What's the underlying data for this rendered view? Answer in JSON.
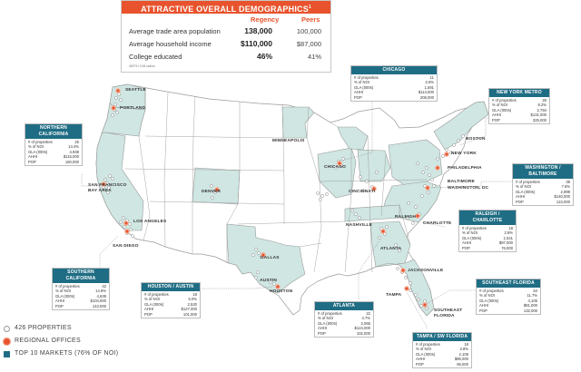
{
  "demographics": {
    "title": "ATTRACTIVE OVERALL DEMOGRAPHICS",
    "title_mark": "1",
    "col_regency": "Regency",
    "col_peers": "Peers",
    "rows": [
      {
        "label": "Average trade area population",
        "regency": "138,000",
        "peers": "100,000"
      },
      {
        "label": "Average household income",
        "regency": "$110,000",
        "peers": "$87,000"
      },
      {
        "label": "College educated",
        "regency": "46%",
        "peers": "41%"
      }
    ],
    "footnote": "¹BRTH 3 Mi radius"
  },
  "markets": [
    {
      "id": "northern-california",
      "title": "NORTHERN CALIFORNIA",
      "rows": [
        [
          "# of properties",
          "25"
        ],
        [
          "% of NOI",
          "14.4%"
        ],
        [
          "GLA (000s)",
          "4,938"
        ],
        [
          "AHHI",
          "$115,000"
        ],
        [
          "POP",
          "160,000"
        ]
      ]
    },
    {
      "id": "chicago",
      "title": "CHICAGO",
      "rows": [
        [
          "# of properties",
          "11"
        ],
        [
          "% of NOI",
          "2.6%"
        ],
        [
          "GLA (000s)",
          "1,591"
        ],
        [
          "AHHI",
          "$114,000"
        ],
        [
          "POP",
          "208,000"
        ]
      ]
    },
    {
      "id": "new-york-metro",
      "title": "NEW YORK METRO",
      "rows": [
        [
          "# of properties",
          "26"
        ],
        [
          "% of NOI",
          "8.2%"
        ],
        [
          "GLA (000s)",
          "2,794"
        ],
        [
          "AHHI",
          "$131,000"
        ],
        [
          "POP",
          "325,000"
        ]
      ]
    },
    {
      "id": "washington-baltimore",
      "title": "WASHINGTON / BALTIMORE",
      "rows": [
        [
          "# of properties",
          "39"
        ],
        [
          "% of NOI",
          "7.6%"
        ],
        [
          "GLA (000s)",
          "2,999"
        ],
        [
          "AHHI",
          "$140,000"
        ],
        [
          "POP",
          "124,000"
        ]
      ]
    },
    {
      "id": "raleigh-charlotte",
      "title": "RALEIGH / CHARLOTTE",
      "rows": [
        [
          "# of properties",
          "18"
        ],
        [
          "% of NOI",
          "2.8%"
        ],
        [
          "GLA (000s)",
          "1,541"
        ],
        [
          "AHHI",
          "$97,000"
        ],
        [
          "POP",
          "76,000"
        ]
      ]
    },
    {
      "id": "southern-california",
      "title": "SOUTHERN CALIFORNIA",
      "rows": [
        [
          "# of properties",
          "42"
        ],
        [
          "% of NOI",
          "14.8%"
        ],
        [
          "GLA (000s)",
          "4,639"
        ],
        [
          "AHHI",
          "$104,000"
        ],
        [
          "POP",
          "143,000"
        ]
      ]
    },
    {
      "id": "houston-austin",
      "title": "HOUSTON / AUSTIN",
      "rows": [
        [
          "# of properties",
          "18"
        ],
        [
          "% of NOI",
          "5.0%"
        ],
        [
          "GLA (000s)",
          "2,520"
        ],
        [
          "AHHI",
          "$127,000"
        ],
        [
          "POP",
          "101,000"
        ]
      ]
    },
    {
      "id": "atlanta",
      "title": "ATLANTA",
      "rows": [
        [
          "# of properties",
          "22"
        ],
        [
          "% of NOI",
          "4.7%"
        ],
        [
          "GLA (000s)",
          "2,065"
        ],
        [
          "AHHI",
          "$124,000"
        ],
        [
          "POP",
          "102,000"
        ]
      ]
    },
    {
      "id": "southeast-florida",
      "title": "SOUTHEAST FLORIDA",
      "rows": [
        [
          "# of properties",
          "54"
        ],
        [
          "% of NOI",
          "11.7%"
        ],
        [
          "GLA (000s)",
          "4,105"
        ],
        [
          "AHHI",
          "$81,000"
        ],
        [
          "POP",
          "132,000"
        ]
      ]
    },
    {
      "id": "tampa-sw-florida",
      "title": "TAMPA / SW FLORIDA",
      "rows": [
        [
          "# of properties",
          "18"
        ],
        [
          "% of NOI",
          "3.8%"
        ],
        [
          "GLA (000s)",
          "2,108"
        ],
        [
          "AHHI",
          "$86,000"
        ],
        [
          "POP",
          "66,000"
        ]
      ]
    }
  ],
  "cities": {
    "seattle": "SEATTLE",
    "portland": "PORTLAND",
    "san_francisco": "SAN FRANCISCO\nBAY AREA",
    "los_angeles": "LOS ANGELES",
    "san_diego": "SAN DIEGO",
    "denver": "DENVER",
    "minneapolis": "MINNEAPOLIS",
    "chicago": "CHICAGO",
    "cincinnati": "CINCINNATI",
    "boston": "BOSTON",
    "new_york": "NEW YORK",
    "philadelphia": "PHILADELPHIA",
    "baltimore": "BALTIMORE",
    "washington": "WASHINGTON, DC",
    "raleigh": "RALEIGH",
    "charlotte": "CHARLOTTE",
    "nashville": "NASHVILLE",
    "atlanta": "ATLANTA",
    "dallas": "DALLAS",
    "austin": "AUSTIN",
    "houston": "HOUSTON",
    "jacksonville": "JACKSONVILLE",
    "tampa": "TAMPA",
    "southeast_florida": "SOUTHEAST\nFLORIDA"
  },
  "legend": {
    "properties": "426 PROPERTIES",
    "offices": "REGIONAL OFFICES",
    "markets": "TOP 10 MARKETS",
    "markets_note": "(76% OF NOI)"
  },
  "colors": {
    "accent": "#e8532d",
    "market_teal": "#1f6d84",
    "map_fill": "#ffffff",
    "market_fill": "#cfe6e2",
    "border": "#9a9a9a"
  }
}
